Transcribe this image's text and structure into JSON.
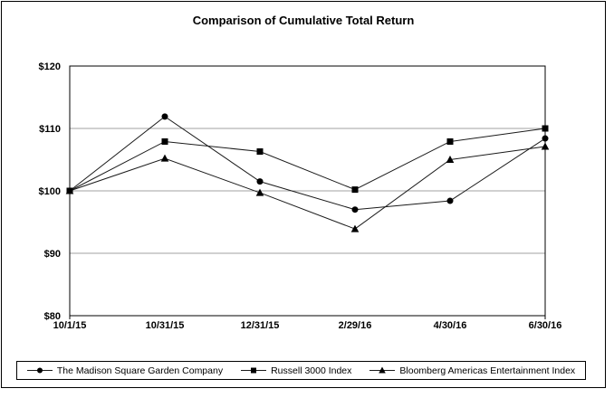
{
  "chart_data": {
    "type": "line",
    "title": "Comparison of Cumulative Total Return",
    "categories": [
      "10/1/15",
      "10/31/15",
      "12/31/15",
      "2/29/16",
      "4/30/16",
      "6/30/16"
    ],
    "series": [
      {
        "name": "The Madison Square Garden Company",
        "marker": "circle",
        "values": [
          100,
          111.9,
          101.5,
          97.0,
          98.4,
          108.4
        ]
      },
      {
        "name": "Russell 3000 Index",
        "marker": "square",
        "values": [
          100,
          107.9,
          106.3,
          100.2,
          107.9,
          110.0
        ]
      },
      {
        "name": "Bloomberg Americas Entertainment Index",
        "marker": "triangle",
        "values": [
          100,
          105.2,
          99.7,
          93.9,
          105.0,
          107.1
        ]
      }
    ],
    "ylim": [
      80,
      120
    ],
    "y_ticks": [
      "$80",
      "$90",
      "$100",
      "$110",
      "$120"
    ],
    "y_tick_values": [
      80,
      90,
      100,
      110,
      120
    ],
    "grid": true,
    "legend_position": "bottom",
    "xlabel": "",
    "ylabel": ""
  },
  "colors": {
    "series_line": "#1a1a1a",
    "marker_fill": "#000000",
    "grid": "#a0a0a0",
    "axis": "#000000",
    "frame_border": "#000000",
    "background": "#ffffff"
  }
}
